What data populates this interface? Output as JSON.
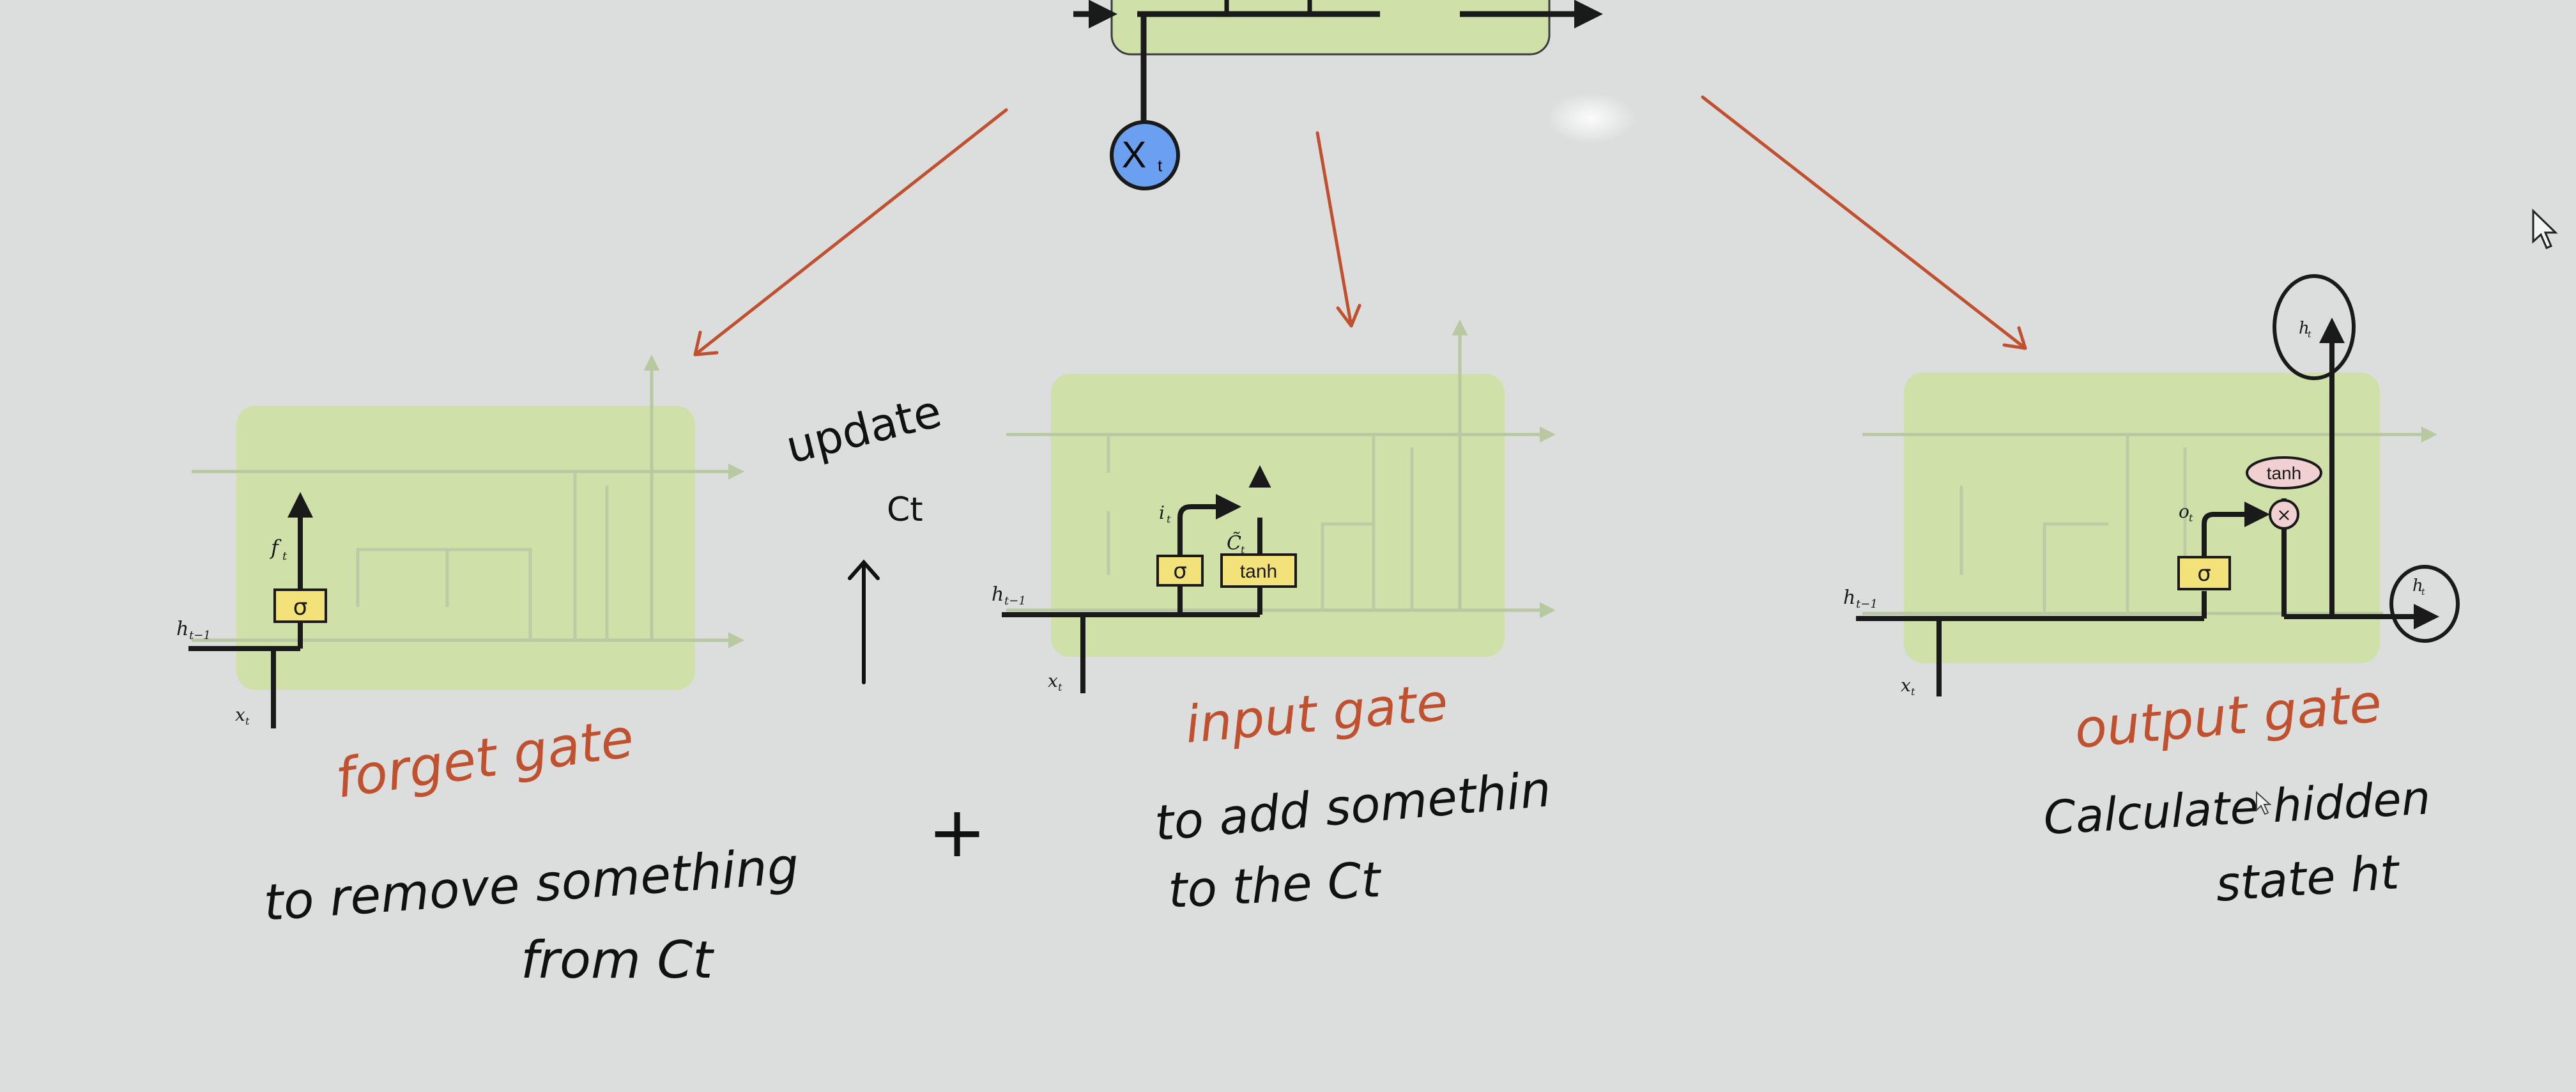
{
  "colors": {
    "background": "#dcdddd",
    "cell_fill": "#cfe0a8",
    "gate_fill": "#f3e27a",
    "ink": "#1a1a1a",
    "red_ink": "#c0502e",
    "xt_fill": "#6b9ff0"
  },
  "top": {
    "xt_label": "X",
    "xt_sub": "t"
  },
  "cells": {
    "forget": {
      "gate_sym": "σ",
      "ft": "f",
      "ft_sub": "t",
      "ht1": "h",
      "ht1_sub": "t−1",
      "xt": "x",
      "xt_sub": "t"
    },
    "input": {
      "sigma_sym": "σ",
      "tanh_sym": "tanh",
      "it": "i",
      "it_sub": "t",
      "ct": "C̃",
      "ct_sub": "t",
      "ht1": "h",
      "ht1_sub": "t−1",
      "xt": "x",
      "xt_sub": "t"
    },
    "output": {
      "sigma_sym": "σ",
      "tanh_sym": "tanh",
      "mult_sym": "×",
      "ot": "o",
      "ot_sub": "t",
      "ht_top": "h",
      "ht_top_sub": "t",
      "ht_right": "h",
      "ht_right_sub": "t",
      "ht1": "h",
      "ht1_sub": "t−1",
      "xt": "x",
      "xt_sub": "t"
    }
  },
  "notes": {
    "update": "update",
    "update_ct": "Ct",
    "plus": "+",
    "forget_title": "forget gate",
    "forget_desc_1": "to remove something",
    "forget_desc_2": "from Ct",
    "input_title": "input gate",
    "input_desc_1": "to add somethin",
    "input_desc_2": "to the Ct",
    "output_title": "output gate",
    "output_desc_1": "Calculate hidden",
    "output_desc_2": "state ht"
  }
}
